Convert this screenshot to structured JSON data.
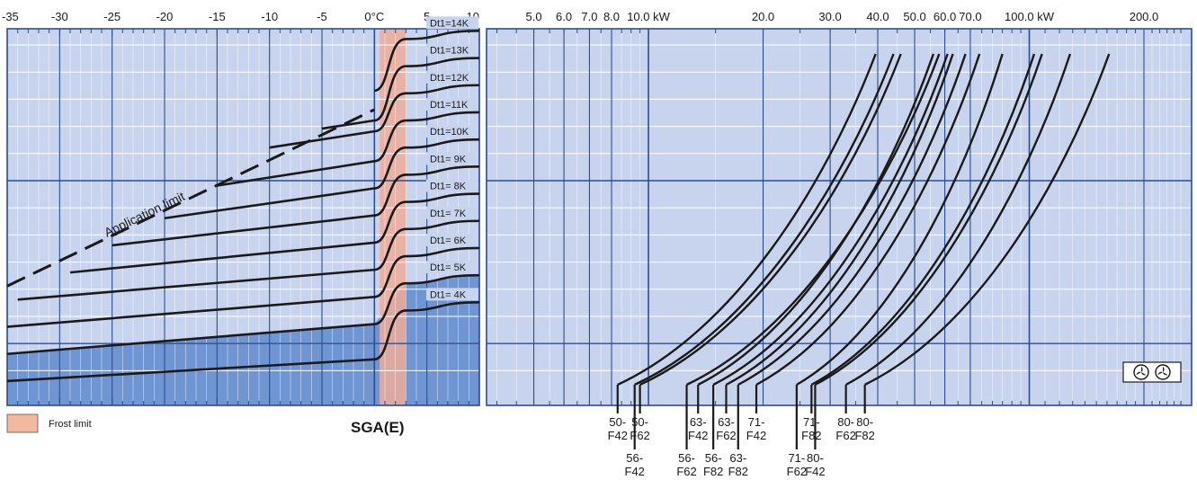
{
  "title": "SGA(E)",
  "legend": {
    "label": "Frost limit",
    "color": "#f2b8a0"
  },
  "colors": {
    "panel": "#c8d4ee",
    "gridMajor": "#2b4d8e",
    "gridMinor": "#ffffff",
    "curve": "#1a1a1a",
    "operating_area": "#6f95d2",
    "frost_band": "#eeab9a"
  },
  "chart_data": [
    {
      "type": "line",
      "name": "temperature-panel",
      "xlabel": "",
      "x_ticks": [
        "-35",
        "-30",
        "-25",
        "-20",
        "-15",
        "-10",
        "-5",
        "0°C",
        "5",
        "10"
      ],
      "x_tick_values": [
        -35,
        -30,
        -25,
        -20,
        -15,
        -10,
        -5,
        0,
        5,
        10
      ],
      "xlim": [
        -35,
        10
      ],
      "frost_limit_range": [
        0.5,
        3.0
      ],
      "application_limit_label": "Application limit",
      "application_limit": [
        [
          -35,
          3.8
        ],
        [
          0,
          10.3
        ]
      ],
      "series": [
        {
          "name": "Dt1=14K",
          "points": [
            [
              0,
              11.0
            ],
            [
              3,
              12.9
            ],
            [
              10,
              13.2
            ]
          ]
        },
        {
          "name": "Dt1=13K",
          "points": [
            [
              -5,
              9.6
            ],
            [
              0,
              9.9
            ],
            [
              3,
              11.9
            ],
            [
              10,
              12.2
            ]
          ]
        },
        {
          "name": "Dt1=12K",
          "points": [
            [
              -10,
              8.9
            ],
            [
              0,
              9.5
            ],
            [
              3,
              10.9
            ],
            [
              10,
              11.2
            ]
          ]
        },
        {
          "name": "Dt1=11K",
          "points": [
            [
              -15,
              7.5
            ],
            [
              0,
              8.4
            ],
            [
              3,
              9.9
            ],
            [
              10,
              10.2
            ]
          ]
        },
        {
          "name": "Dt1=10K",
          "points": [
            [
              -20,
              6.3
            ],
            [
              0,
              7.4
            ],
            [
              3,
              8.9
            ],
            [
              10,
              9.2
            ]
          ]
        },
        {
          "name": "Dt1= 9K",
          "points": [
            [
              -25,
              5.3
            ],
            [
              0,
              6.4
            ],
            [
              3,
              7.9
            ],
            [
              10,
              8.2
            ]
          ]
        },
        {
          "name": "Dt1= 8K",
          "points": [
            [
              -29,
              4.3
            ],
            [
              0,
              5.4
            ],
            [
              3,
              6.9
            ],
            [
              10,
              7.2
            ]
          ]
        },
        {
          "name": "Dt1= 7K",
          "points": [
            [
              -34,
              3.3
            ],
            [
              0,
              4.4
            ],
            [
              3,
              5.9
            ],
            [
              10,
              6.2
            ]
          ]
        },
        {
          "name": "Dt1= 6K",
          "points": [
            [
              -35,
              2.3
            ],
            [
              0,
              3.4
            ],
            [
              3,
              4.9
            ],
            [
              10,
              5.2
            ]
          ]
        },
        {
          "name": "Dt1= 5K",
          "points": [
            [
              -35,
              1.3
            ],
            [
              0,
              2.4
            ],
            [
              3,
              3.9
            ],
            [
              10,
              4.2
            ]
          ]
        },
        {
          "name": "Dt1= 4K",
          "points": [
            [
              -35,
              0.3
            ],
            [
              0,
              1.1
            ],
            [
              3,
              2.9
            ],
            [
              10,
              3.2
            ]
          ]
        }
      ],
      "dt_labels": [
        "Dt1=14K",
        "Dt1=13K",
        "Dt1=12K",
        "Dt1=11K",
        "Dt1=10K",
        "Dt1= 9K",
        "Dt1= 8K",
        "Dt1= 7K",
        "Dt1= 6K",
        "Dt1= 5K",
        "Dt1= 4K"
      ]
    },
    {
      "type": "line",
      "name": "capacity-panel",
      "xscale": "log",
      "xlim": [
        4.0,
        260
      ],
      "x_ticks": [
        "5.0",
        "6.0",
        "7.0",
        "8.0",
        "10.0 kW",
        "20.0",
        "30.0",
        "40.0",
        "50.0",
        "60.0",
        "70.0",
        "100.0 kW",
        "200.0"
      ],
      "x_tick_values": [
        5,
        6,
        7,
        8,
        10,
        20,
        30,
        40,
        50,
        60,
        70,
        100,
        200
      ],
      "fan_symbol": "two-fan-icon",
      "models": [
        {
          "label": [
            "50-",
            "F42"
          ],
          "row": 1,
          "q_bottom": 8.3,
          "q_top": 39.5
        },
        {
          "label": [
            "56-",
            "F42"
          ],
          "row": 2,
          "q_bottom": 9.2,
          "q_top": 44.0
        },
        {
          "label": [
            "50-",
            "F62"
          ],
          "row": 1,
          "q_bottom": 9.5,
          "q_top": 46.0
        },
        {
          "label": [
            "63-",
            "F42"
          ],
          "row": 1,
          "q_bottom": 13.5,
          "q_top": 56.0
        },
        {
          "label": [
            "56-",
            "F62"
          ],
          "row": 2,
          "q_bottom": 12.6,
          "q_top": 58.0
        },
        {
          "label": [
            "56-",
            "F82"
          ],
          "row": 2,
          "q_bottom": 14.8,
          "q_top": 61.0
        },
        {
          "label": [
            "63-",
            "F62"
          ],
          "row": 1,
          "q_bottom": 16.0,
          "q_top": 63.0
        },
        {
          "label": [
            "63-",
            "F82"
          ],
          "row": 2,
          "q_bottom": 17.2,
          "q_top": 68.0
        },
        {
          "label": [
            "71-",
            "F42"
          ],
          "row": 1,
          "q_bottom": 19.2,
          "q_top": 74.0
        },
        {
          "label": [
            "71-",
            "F62"
          ],
          "row": 2,
          "q_bottom": 24.5,
          "q_top": 85.0
        },
        {
          "label": [
            "71-",
            "F82"
          ],
          "row": 1,
          "q_bottom": 26.8,
          "q_top": 103.0
        },
        {
          "label": [
            "80-",
            "F42"
          ],
          "row": 2,
          "q_bottom": 27.4,
          "q_top": 108.0
        },
        {
          "label": [
            "80-",
            "F62"
          ],
          "row": 1,
          "q_bottom": 33.0,
          "q_top": 128.0
        },
        {
          "label": [
            "80-",
            "F82"
          ],
          "row": 1,
          "q_bottom": 37.0,
          "q_top": 162.0
        }
      ]
    }
  ]
}
